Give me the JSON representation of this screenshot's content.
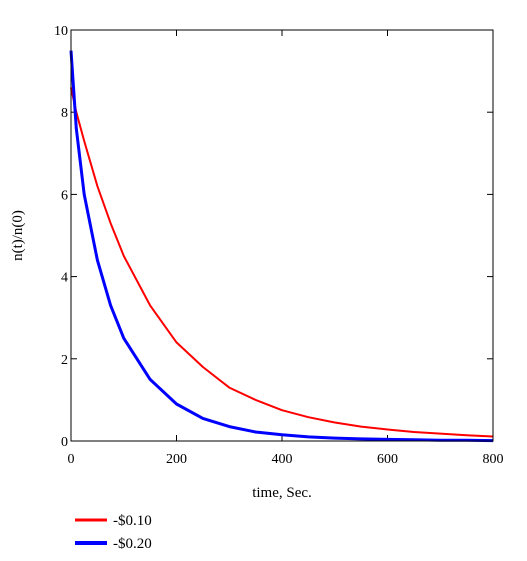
{
  "chart_data": {
    "type": "line",
    "title": "",
    "xlabel": "time, Sec.",
    "ylabel": "n(t)/n(0)",
    "xlim": [
      0,
      800
    ],
    "ylim": [
      0,
      10
    ],
    "x_ticks": [
      "0",
      "200",
      "400",
      "600",
      "800"
    ],
    "y_ticks": [
      "0",
      "2",
      "4",
      "6",
      "8",
      "10"
    ],
    "grid": false,
    "legend_position": "bottom-left, below plot",
    "series": [
      {
        "name": "-$0.10",
        "color": "#ff0000",
        "x": [
          0,
          10,
          25,
          50,
          75,
          100,
          150,
          200,
          250,
          300,
          350,
          400,
          450,
          500,
          550,
          600,
          650,
          700,
          750,
          800
        ],
        "y": [
          8.6,
          8.0,
          7.3,
          6.2,
          5.3,
          4.5,
          3.3,
          2.4,
          1.8,
          1.3,
          1.0,
          0.75,
          0.58,
          0.45,
          0.35,
          0.28,
          0.22,
          0.18,
          0.14,
          0.11
        ]
      },
      {
        "name": "-$0.20",
        "color": "#0000ff",
        "x": [
          0,
          10,
          25,
          50,
          75,
          100,
          150,
          200,
          250,
          300,
          350,
          400,
          450,
          500,
          550,
          600,
          650,
          700,
          750,
          800
        ],
        "y": [
          9.5,
          7.6,
          6.0,
          4.4,
          3.3,
          2.5,
          1.5,
          0.9,
          0.55,
          0.35,
          0.22,
          0.15,
          0.1,
          0.07,
          0.05,
          0.04,
          0.03,
          0.02,
          0.02,
          0.01
        ]
      }
    ]
  }
}
